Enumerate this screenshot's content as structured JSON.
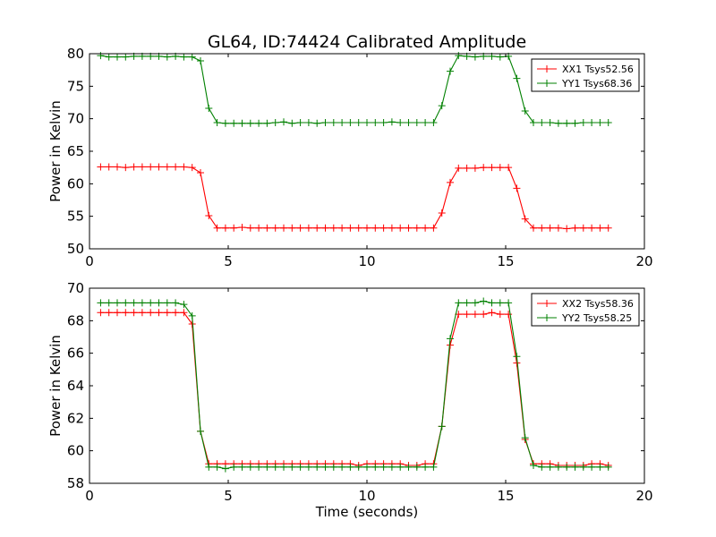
{
  "title": "GL64, ID:74424 Calibrated Amplitude",
  "colors": {
    "red": "#ff0000",
    "green": "#008000"
  },
  "chart_data": [
    {
      "type": "line",
      "title": "GL64, ID:74424 Calibrated Amplitude",
      "xlabel": "",
      "ylabel": "Power in Kelvin",
      "xlim": [
        0,
        20
      ],
      "ylim": [
        50,
        80
      ],
      "xticks": [
        "0",
        "5",
        "10",
        "15",
        "20"
      ],
      "yticks": [
        "50",
        "55",
        "60",
        "65",
        "70",
        "75",
        "80"
      ],
      "grid": false,
      "legend": "top-right",
      "x": [
        0.4,
        0.7,
        1.0,
        1.3,
        1.6,
        1.9,
        2.2,
        2.5,
        2.8,
        3.1,
        3.4,
        3.7,
        4.0,
        4.3,
        4.6,
        4.9,
        5.2,
        5.5,
        5.8,
        6.1,
        6.4,
        6.7,
        7.0,
        7.3,
        7.6,
        7.9,
        8.2,
        8.5,
        8.8,
        9.1,
        9.4,
        9.7,
        10.0,
        10.3,
        10.6,
        10.9,
        11.2,
        11.5,
        11.8,
        12.1,
        12.4,
        12.7,
        13.0,
        13.3,
        13.6,
        13.9,
        14.2,
        14.5,
        14.8,
        15.1,
        15.4,
        15.7,
        16.0,
        16.3,
        16.6,
        16.9,
        17.2,
        17.5,
        17.8,
        18.1,
        18.4,
        18.7
      ],
      "series": [
        {
          "name": "XX1 Tsys52.56",
          "color": "#ff0000",
          "values": [
            62.6,
            62.6,
            62.6,
            62.5,
            62.6,
            62.6,
            62.6,
            62.6,
            62.6,
            62.6,
            62.6,
            62.5,
            61.7,
            55.1,
            53.2,
            53.2,
            53.2,
            53.3,
            53.2,
            53.2,
            53.2,
            53.2,
            53.2,
            53.2,
            53.2,
            53.2,
            53.2,
            53.2,
            53.2,
            53.2,
            53.2,
            53.2,
            53.2,
            53.2,
            53.2,
            53.2,
            53.2,
            53.2,
            53.2,
            53.2,
            53.2,
            55.5,
            60.2,
            62.4,
            62.4,
            62.4,
            62.5,
            62.5,
            62.5,
            62.5,
            59.3,
            54.6,
            53.2,
            53.2,
            53.2,
            53.2,
            53.1,
            53.2,
            53.2,
            53.2,
            53.2,
            53.2
          ]
        },
        {
          "name": "YY1 Tsys68.36",
          "color": "#008000",
          "values": [
            79.7,
            79.5,
            79.5,
            79.5,
            79.6,
            79.6,
            79.6,
            79.6,
            79.5,
            79.6,
            79.5,
            79.5,
            78.9,
            71.6,
            69.4,
            69.3,
            69.3,
            69.3,
            69.3,
            69.3,
            69.3,
            69.4,
            69.5,
            69.3,
            69.4,
            69.4,
            69.3,
            69.4,
            69.4,
            69.4,
            69.4,
            69.4,
            69.4,
            69.4,
            69.4,
            69.5,
            69.4,
            69.4,
            69.4,
            69.4,
            69.4,
            72.0,
            77.3,
            79.7,
            79.6,
            79.5,
            79.6,
            79.6,
            79.5,
            79.6,
            76.2,
            71.2,
            69.4,
            69.4,
            69.4,
            69.3,
            69.3,
            69.3,
            69.4,
            69.4,
            69.4,
            69.4
          ]
        }
      ]
    },
    {
      "type": "line",
      "title": "",
      "xlabel": "Time (seconds)",
      "ylabel": "Power in Kelvin",
      "xlim": [
        0,
        20
      ],
      "ylim": [
        58,
        70
      ],
      "xticks": [
        "0",
        "5",
        "10",
        "15",
        "20"
      ],
      "yticks": [
        "58",
        "60",
        "62",
        "64",
        "66",
        "68",
        "70"
      ],
      "grid": false,
      "legend": "top-right",
      "x": [
        0.4,
        0.7,
        1.0,
        1.3,
        1.6,
        1.9,
        2.2,
        2.5,
        2.8,
        3.1,
        3.4,
        3.7,
        4.0,
        4.3,
        4.6,
        4.9,
        5.2,
        5.5,
        5.8,
        6.1,
        6.4,
        6.7,
        7.0,
        7.3,
        7.6,
        7.9,
        8.2,
        8.5,
        8.8,
        9.1,
        9.4,
        9.7,
        10.0,
        10.3,
        10.6,
        10.9,
        11.2,
        11.5,
        11.8,
        12.1,
        12.4,
        12.7,
        13.0,
        13.3,
        13.6,
        13.9,
        14.2,
        14.5,
        14.8,
        15.1,
        15.4,
        15.7,
        16.0,
        16.3,
        16.6,
        16.9,
        17.2,
        17.5,
        17.8,
        18.1,
        18.4,
        18.7
      ],
      "series": [
        {
          "name": "XX2 Tsys58.36",
          "color": "#ff0000",
          "values": [
            68.5,
            68.5,
            68.5,
            68.5,
            68.5,
            68.5,
            68.5,
            68.5,
            68.5,
            68.5,
            68.5,
            67.8,
            61.2,
            59.2,
            59.2,
            59.2,
            59.2,
            59.2,
            59.2,
            59.2,
            59.2,
            59.2,
            59.2,
            59.2,
            59.2,
            59.2,
            59.2,
            59.2,
            59.2,
            59.2,
            59.2,
            59.1,
            59.2,
            59.2,
            59.2,
            59.2,
            59.2,
            59.1,
            59.1,
            59.2,
            59.2,
            61.5,
            66.5,
            68.4,
            68.4,
            68.4,
            68.4,
            68.5,
            68.4,
            68.4,
            65.4,
            60.7,
            59.2,
            59.2,
            59.2,
            59.1,
            59.1,
            59.1,
            59.1,
            59.2,
            59.2,
            59.1
          ]
        },
        {
          "name": "YY2 Tsys58.25",
          "color": "#008000",
          "values": [
            69.1,
            69.1,
            69.1,
            69.1,
            69.1,
            69.1,
            69.1,
            69.1,
            69.1,
            69.1,
            69.0,
            68.3,
            61.2,
            59.0,
            59.0,
            58.9,
            59.0,
            59.0,
            59.0,
            59.0,
            59.0,
            59.0,
            59.0,
            59.0,
            59.0,
            59.0,
            59.0,
            59.0,
            59.0,
            59.0,
            59.0,
            59.0,
            59.0,
            59.0,
            59.0,
            59.0,
            59.0,
            59.0,
            59.0,
            59.0,
            59.0,
            61.5,
            66.9,
            69.1,
            69.1,
            69.1,
            69.2,
            69.1,
            69.1,
            69.1,
            65.8,
            60.8,
            59.1,
            59.0,
            59.0,
            59.0,
            59.0,
            59.0,
            59.0,
            59.0,
            59.0,
            59.0
          ]
        }
      ]
    }
  ]
}
